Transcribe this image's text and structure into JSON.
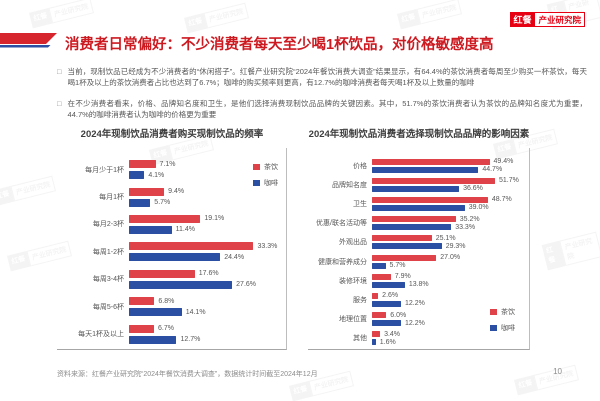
{
  "brand": {
    "logo_primary": "红餐",
    "logo_secondary": "产业研究院"
  },
  "header": {
    "title": "消费者日常偏好：不少消费者每天至少喝1杯饮品，对价格敏感度高"
  },
  "bullets": {
    "marker": "□",
    "items": [
      {
        "text": "当前，现制饮品已经成为不少消费者的“休闲搭子”。红餐产业研究院“2024年餐饮消费大调查”结果显示，有64.4%的茶饮消费者每周至少购买一杯茶饮，每天喝1杯及以上的茶饮消费者占比也达到了6.7%；咖啡的购买频率则更高，有12.7%的咖啡消费者每天喝1杯及以上数量的咖啡"
      },
      {
        "text": "在不少消费者看来，价格、品牌知名度和卫生，是他们选择消费现制饮品品牌的关键因素。其中，51.7%的茶饮消费者认为茶饮的品牌知名度尤为重要，44.7%的咖啡消费者认为咖啡的价格更为重要"
      }
    ]
  },
  "chart_data": [
    {
      "type": "bar",
      "orientation": "horizontal",
      "title": "2024年现制饮品消费者购买现制饮品的频率",
      "categories": [
        "每月少于1杯",
        "每月1杯",
        "每月2-3杯",
        "每周1-2杯",
        "每周3-4杯",
        "每周5-6杯",
        "每天1杯及以上"
      ],
      "series": [
        {
          "name": "茶饮",
          "color": "#e0424a",
          "values": [
            7.1,
            9.4,
            19.1,
            33.3,
            17.6,
            6.8,
            6.7
          ]
        },
        {
          "name": "咖啡",
          "color": "#2b4fa2",
          "values": [
            4.1,
            5.7,
            11.4,
            24.4,
            27.6,
            14.1,
            12.7
          ]
        }
      ],
      "xlim": [
        0,
        42
      ],
      "value_suffix": "%",
      "grid": false,
      "legend_position": "top-right"
    },
    {
      "type": "bar",
      "orientation": "horizontal",
      "title": "2024年现制饮品消费者选择现制饮品品牌的影响因素",
      "categories": [
        "价格",
        "品牌知名度",
        "卫生",
        "优惠/联名活动等",
        "外观出品",
        "健康和营养成分",
        "装修环境",
        "服务",
        "地理位置",
        "其他"
      ],
      "series": [
        {
          "name": "茶饮",
          "color": "#e0424a",
          "values": [
            49.4,
            51.7,
            48.7,
            35.2,
            25.1,
            27.0,
            7.9,
            2.6,
            6.0,
            3.4
          ]
        },
        {
          "name": "咖啡",
          "color": "#2b4fa2",
          "values": [
            44.7,
            36.6,
            39.0,
            33.3,
            29.3,
            5.7,
            13.8,
            12.2,
            12.2,
            1.6
          ]
        }
      ],
      "xlim": [
        0,
        66
      ],
      "value_suffix": "%",
      "grid": false,
      "legend_position": "bottom-right"
    }
  ],
  "footer": {
    "source": "资料来源：红餐产业研究院“2024年餐饮消费大调查”，数据统计时间截至2024年12月",
    "page": "10"
  },
  "colors": {
    "tea": "#e0424a",
    "coffee": "#2b4fa2",
    "title_red": "#cd1a21",
    "brand_red": "#e60012",
    "deco_blue": "#2b4fa2"
  }
}
